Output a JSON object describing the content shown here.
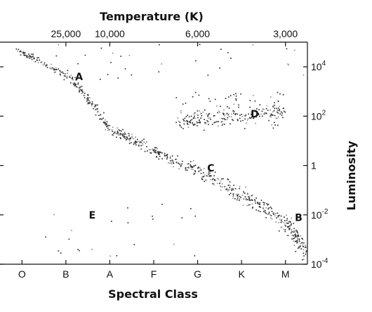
{
  "chart_data": {
    "type": "scatter",
    "title": "",
    "top_axis": {
      "label": "Temperature (K)",
      "ticks": [
        {
          "label": "25,000",
          "class_pos": 1.0
        },
        {
          "label": "10,000",
          "class_pos": 2.0
        },
        {
          "label": "6,000",
          "class_pos": 4.0
        },
        {
          "label": "3,000",
          "class_pos": 6.0
        }
      ]
    },
    "x_axis": {
      "label": "Spectral Class",
      "categories": [
        "O",
        "B",
        "A",
        "F",
        "G",
        "K",
        "M"
      ],
      "range": [
        -0.5,
        6.5
      ]
    },
    "y_axis": {
      "label": "Luminosity",
      "scale": "log",
      "range": [
        -4.0,
        5.0
      ],
      "ticks": [
        {
          "label": "10",
          "exp": "4",
          "log": 4
        },
        {
          "label": "10",
          "exp": "2",
          "log": 2
        },
        {
          "label": "1",
          "exp": "",
          "log": 0
        },
        {
          "label": "10",
          "exp": "-2",
          "log": -2
        },
        {
          "label": "10",
          "exp": "-4",
          "log": -4
        }
      ]
    },
    "labeled_points": [
      {
        "label": "A",
        "class_pos": 1.3,
        "log_lum": 3.6
      },
      {
        "label": "B",
        "class_pos": 6.3,
        "log_lum": -2.1
      },
      {
        "label": "C",
        "class_pos": 4.3,
        "log_lum": -0.1
      },
      {
        "label": "D",
        "class_pos": 5.3,
        "log_lum": 2.1
      },
      {
        "label": "E",
        "class_pos": 1.6,
        "log_lum": -2.0
      }
    ],
    "series": [
      {
        "region": "main sequence",
        "path_class": [
          -0.1,
          1.1,
          2.0,
          3.0,
          4.0,
          5.0,
          6.0,
          6.5
        ],
        "path_log_lum": [
          4.7,
          3.6,
          1.5,
          0.6,
          -0.2,
          -1.2,
          -2.3,
          -3.6
        ]
      },
      {
        "region": "giants",
        "class_range": [
          3.5,
          6.0
        ],
        "log_lum_range": [
          1.5,
          3.0
        ]
      },
      {
        "region": "supergiants",
        "class_range": [
          0.5,
          6.5
        ],
        "log_lum_range": [
          3.5,
          5.0
        ]
      },
      {
        "region": "white dwarfs",
        "class_range": [
          0.5,
          4.0
        ],
        "log_lum_range": [
          -4.0,
          -1.5
        ]
      }
    ]
  }
}
